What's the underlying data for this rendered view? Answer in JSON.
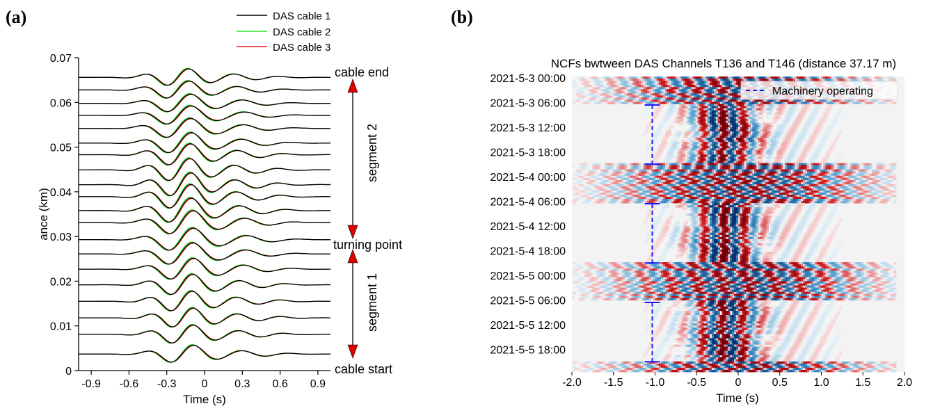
{
  "chart_data": [
    {
      "panel_label": "(a)",
      "type": "line",
      "xlabel": "Time (s)",
      "ylabel": "ance (km)",
      "xlim": [
        -1.0,
        1.0
      ],
      "ylim": [
        0,
        0.07
      ],
      "xticks": [
        -0.9,
        -0.6,
        -0.3,
        0,
        0.3,
        0.6,
        0.9
      ],
      "xtick_labels": [
        "-0.9",
        "-0.6",
        "-0.3",
        "0",
        "0.3",
        "0.6",
        "0.9"
      ],
      "yticks": [
        0,
        0.01,
        0.02,
        0.03,
        0.04,
        0.05,
        0.06,
        0.07
      ],
      "ytick_labels": [
        "0",
        "0.01",
        "0.02",
        "0.03",
        "0.04",
        "0.05",
        "0.06",
        "0.07"
      ],
      "legend_position": "top-right (above plot)",
      "series": [
        {
          "name": "DAS cable 1",
          "color": "#000000"
        },
        {
          "name": "DAS cable 2",
          "color": "#2fe02f"
        },
        {
          "name": "DAS cable 3",
          "color": "#e02020"
        }
      ],
      "trace_offsets_km": [
        0.0037,
        0.0081,
        0.0118,
        0.0155,
        0.0192,
        0.0227,
        0.0261,
        0.0293,
        0.0331,
        0.0358,
        0.0389,
        0.0416,
        0.0449,
        0.0483,
        0.0509,
        0.0542,
        0.0571,
        0.0598,
        0.0628,
        0.0656
      ],
      "annotations": {
        "cable_end": "cable end",
        "segment_2": "segment 2",
        "turning_point": "turning point",
        "segment_1": "segment 1",
        "cable_start": "cable start"
      },
      "annotation_positions_km": {
        "cable_end": 0.065,
        "turning_point": 0.0275,
        "cable_start": 0.0
      }
    },
    {
      "panel_label": "(b)",
      "type": "heatmap",
      "title": "NCFs bwtween DAS Channels T136 and T146 (distance 37.17 m)",
      "xlabel": "Time (s)",
      "xlim": [
        -2.0,
        2.0
      ],
      "xticks": [
        -2.0,
        -1.5,
        -1.0,
        -0.5,
        0,
        0.5,
        1.0,
        1.5,
        2.0
      ],
      "xtick_labels": [
        "-2.0",
        "-1.5",
        "-1.0",
        "-0.5",
        "0",
        "0.5",
        "1.0",
        "1.5",
        "2.0"
      ],
      "ytick_labels": [
        "2021-5-3 00:00",
        "2021-5-3 06:00",
        "2021-5-3 12:00",
        "2021-5-3 18:00",
        "2021-5-4 00:00",
        "2021-5-4 06:00",
        "2021-5-4 12:00",
        "2021-5-4 18:00",
        "2021-5-5 00:00",
        "2021-5-5 06:00",
        "2021-5-5 12:00",
        "2021-5-5 18:00"
      ],
      "colormap": [
        "#08306b",
        "#ffffff",
        "#67000d"
      ],
      "legend": {
        "label": "Machinery operating",
        "color": "#1a1aff",
        "position": "top-right"
      },
      "machinery_intervals": [
        {
          "x": -1.0,
          "start": "2021-5-3 06:35",
          "end": "2021-5-3 21:00"
        },
        {
          "x": -1.0,
          "start": "2021-5-4 06:35",
          "end": "2021-5-4 21:00"
        },
        {
          "x": -1.0,
          "start": "2021-5-5 06:35",
          "end": "2021-5-5 21:00"
        }
      ]
    }
  ]
}
